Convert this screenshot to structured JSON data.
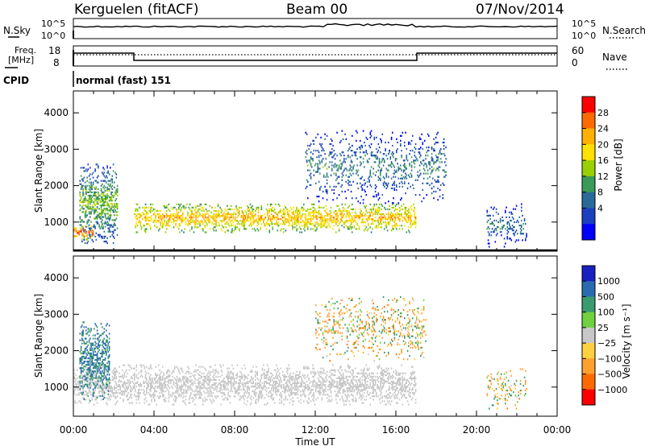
{
  "header": {
    "station": "Kerguelen (fitACF)",
    "beam": "Beam 00",
    "date": "07/Nov/2014"
  },
  "nsky_panel": {
    "left_label": "N.Sky",
    "left_ticks": [
      "10^5",
      "10^0"
    ],
    "right_label": "N.Search",
    "right_ticks": [
      "10^5",
      "10^0"
    ]
  },
  "freq_panel": {
    "left_label_line1": "Freq.",
    "left_label_line2": "[MHz]",
    "left_ticks": [
      "18",
      "8"
    ],
    "right_label": "Nave",
    "right_ticks": [
      "60",
      "0"
    ],
    "cpid_label": "CPID",
    "cpid_value": "normal (fast) 151"
  },
  "x_axis": {
    "ticks": [
      "00:00",
      "04:00",
      "08:00",
      "12:00",
      "16:00",
      "20:00",
      "00:00"
    ],
    "label": "Time UT"
  },
  "chart_data": [
    {
      "type": "heatmap",
      "quantity": "Power",
      "ylabel": "Slant Range [km]",
      "yticks": [
        "4000",
        "3000",
        "2000",
        "1000"
      ],
      "ylim": [
        200,
        4600
      ],
      "xlim_hours": [
        0,
        24
      ],
      "colorbar_label": "Power [dB]",
      "colorbar_ticks": [
        "28",
        "24",
        "20",
        "16",
        "12",
        "8",
        "4"
      ],
      "colorbar_colors": [
        "#ff0000",
        "#ff6a00",
        "#ffb000",
        "#ffe000",
        "#9ad000",
        "#3a9a5a",
        "#2a6a9a",
        "#1a40c0",
        "#0000ff"
      ],
      "grid": false,
      "regions": [
        {
          "name": "early-echoes",
          "t_start": 0.3,
          "t_end": 2.2,
          "r_start": 400,
          "r_end": 2600,
          "level_db": 14
        },
        {
          "name": "near-range-strong",
          "t_start": 0.0,
          "t_end": 1.0,
          "r_start": 500,
          "r_end": 900,
          "level_db": 26
        },
        {
          "name": "main-band",
          "t_start": 3.0,
          "t_end": 17.0,
          "r_start": 700,
          "r_end": 1500,
          "level_db": 22
        },
        {
          "name": "afternoon-scatter",
          "t_start": 11.5,
          "t_end": 18.5,
          "r_start": 1500,
          "r_end": 3500,
          "level_db": 10
        },
        {
          "name": "night-echoes",
          "t_start": 20.5,
          "t_end": 22.5,
          "r_start": 300,
          "r_end": 1500,
          "level_db": 9
        }
      ]
    },
    {
      "type": "heatmap",
      "quantity": "Velocity",
      "ylabel": "Slant Range [km]",
      "yticks": [
        "4000",
        "3000",
        "2000",
        "1000"
      ],
      "ylim": [
        200,
        4600
      ],
      "xlim_hours": [
        0,
        24
      ],
      "colorbar_label": "Velocity [m s⁻¹]",
      "colorbar_ticks": [
        "1000",
        "500",
        "100",
        "25",
        "−25",
        "−100",
        "−500",
        "−1000"
      ],
      "colorbar_colors": [
        "#1a20c0",
        "#2a6ab0",
        "#3a9a70",
        "#70d040",
        "#c8c8c8",
        "#ffd040",
        "#ffa030",
        "#ff6a00",
        "#ff0000"
      ],
      "grid": false,
      "regions": [
        {
          "name": "ground-scatter",
          "t_start": 0.0,
          "t_end": 17.0,
          "r_start": 500,
          "r_end": 1600,
          "vel_ms": 0
        },
        {
          "name": "early-echoes",
          "t_start": 0.3,
          "t_end": 1.8,
          "r_start": 600,
          "r_end": 2800,
          "vel_ms": 300
        },
        {
          "name": "afternoon-scatter",
          "t_start": 12.0,
          "t_end": 17.5,
          "r_start": 1700,
          "r_end": 3500,
          "vel_ms": -80
        },
        {
          "name": "night-echoes",
          "t_start": 20.5,
          "t_end": 22.5,
          "r_start": 300,
          "r_end": 1500,
          "vel_ms": -60
        }
      ]
    }
  ]
}
